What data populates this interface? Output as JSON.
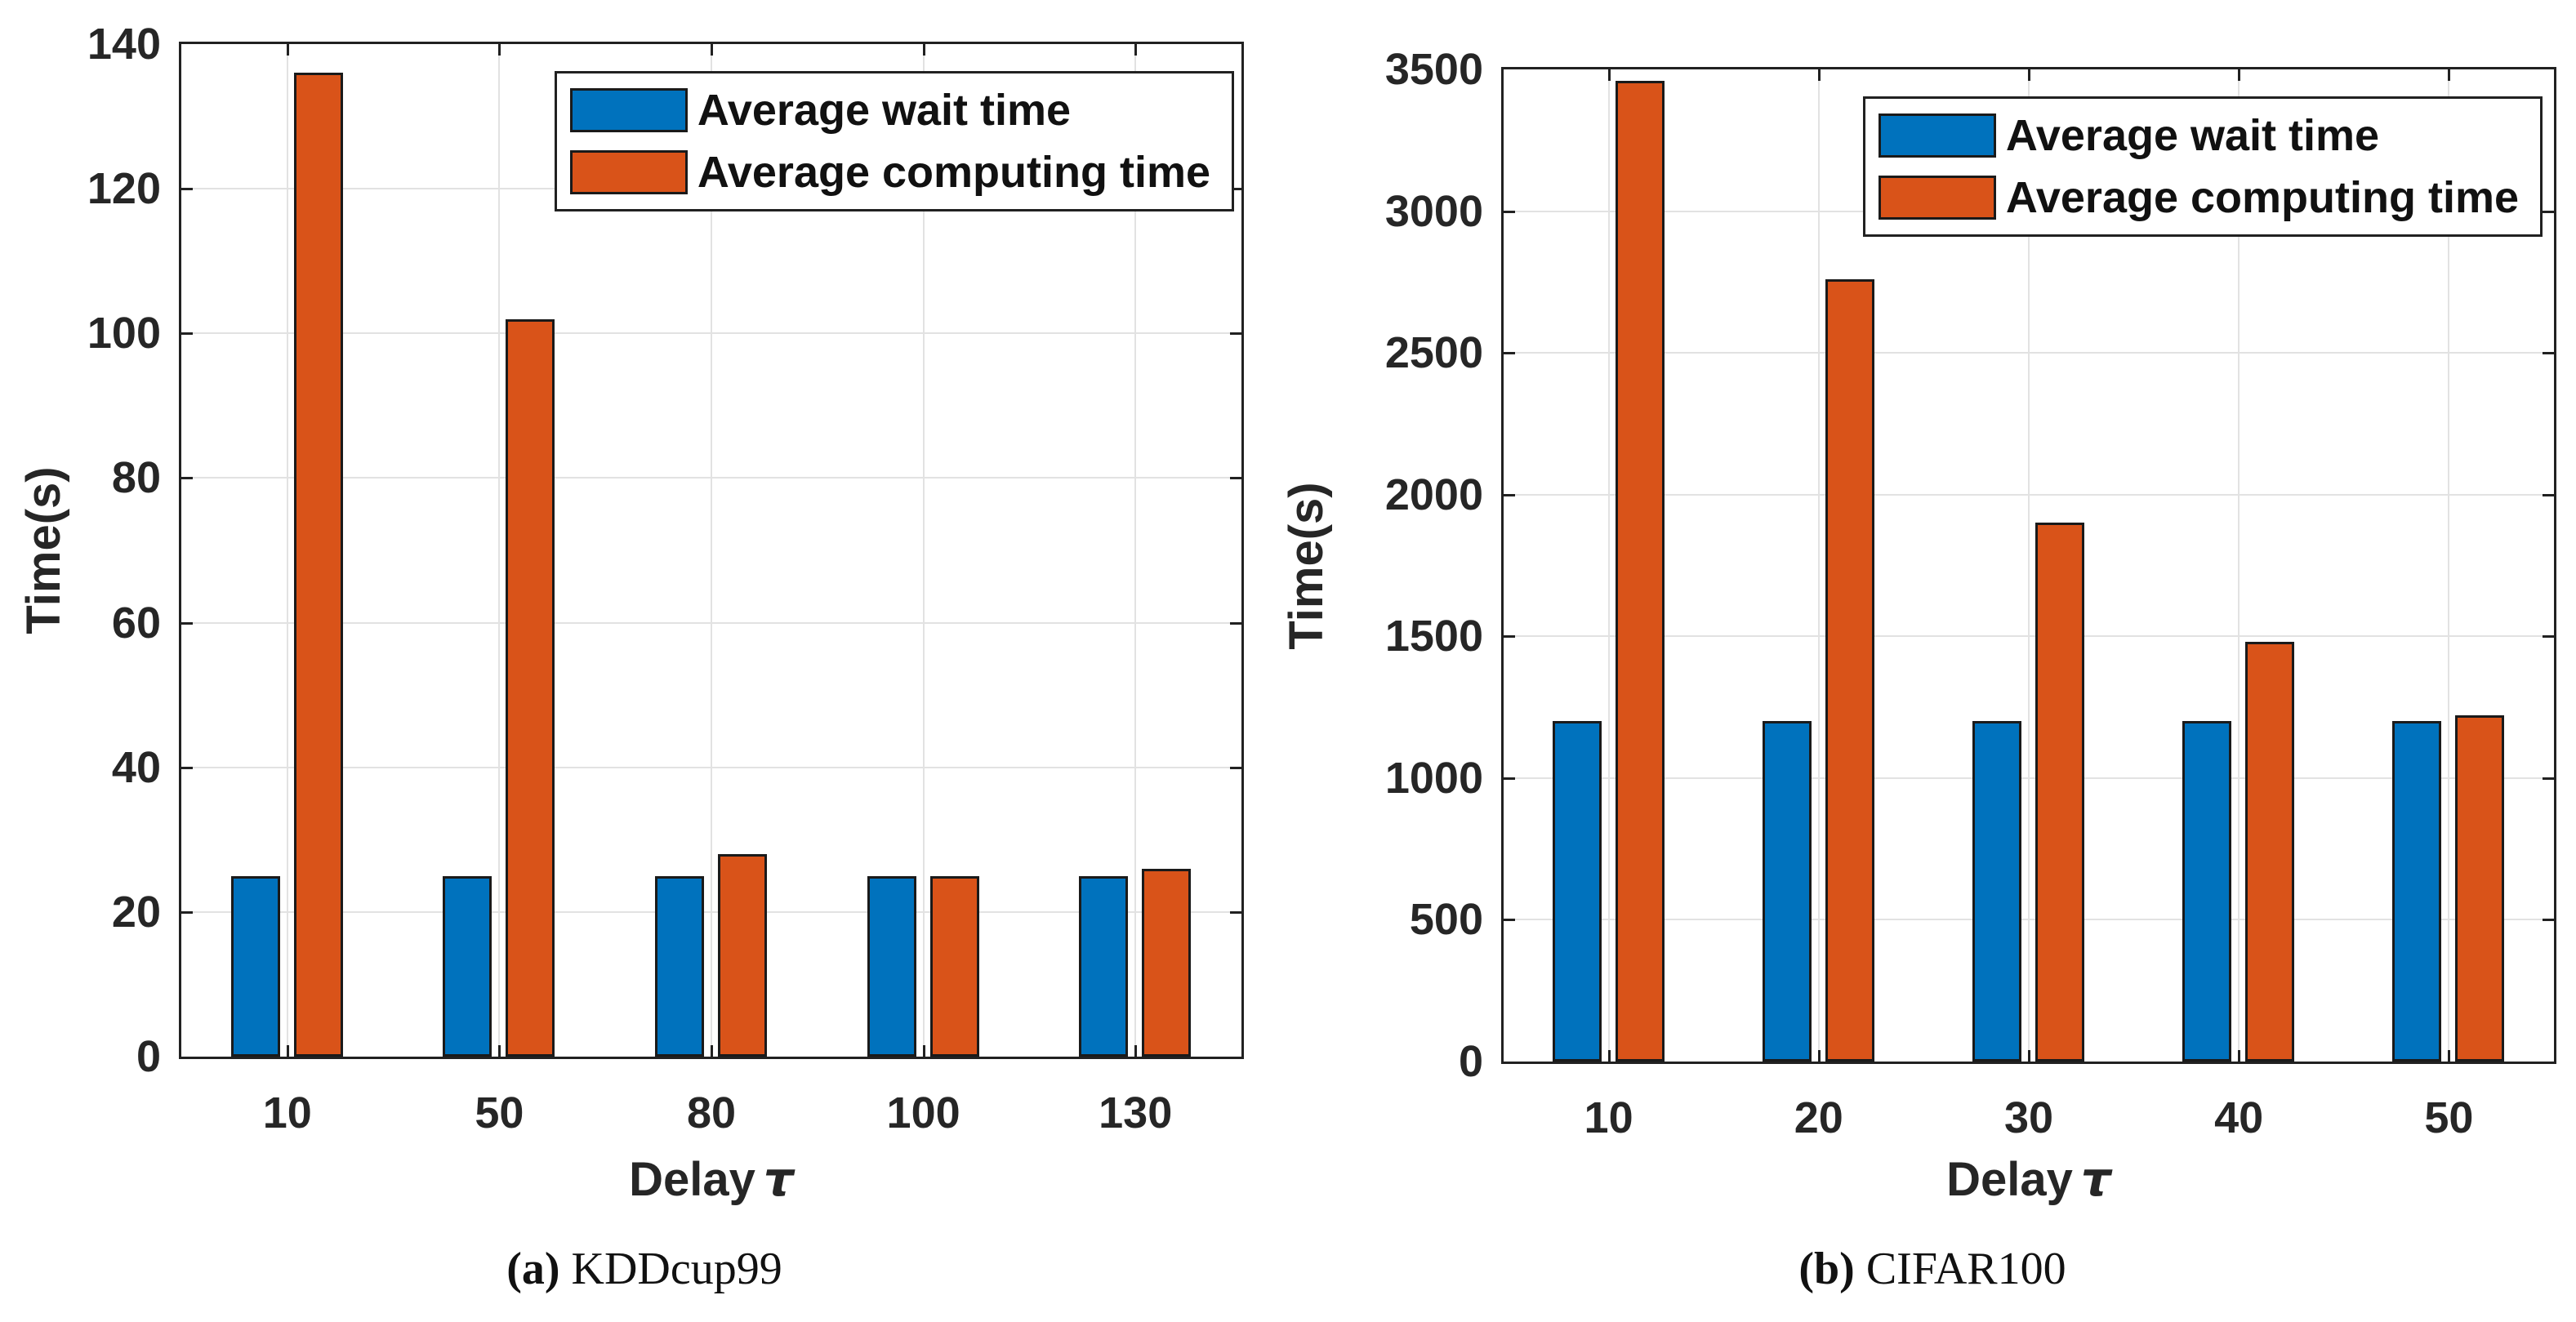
{
  "figure": {
    "background": "#ffffff",
    "colors": {
      "bar_blue": "#0072BD",
      "bar_orange": "#D95319",
      "bar_edge": "#1a1a1a",
      "axis": "#212121",
      "grid": "#e2e2e2",
      "text": "#262626"
    },
    "legend": {
      "items": [
        {
          "label": "Average wait time",
          "color": "#0072BD"
        },
        {
          "label": "Average computing time",
          "color": "#D95319"
        }
      ]
    },
    "charts": [
      {
        "id": "a",
        "ylabel": "Time(s)",
        "xlabel_text": "Delay",
        "xlabel_symbol": "τ",
        "caption_prefix": "(a)",
        "caption_label": "KDDcup99",
        "ytick_labels": [
          "0",
          "20",
          "40",
          "60",
          "80",
          "100",
          "120",
          "140"
        ],
        "xtick_labels": [
          "10",
          "50",
          "80",
          "100",
          "130"
        ]
      },
      {
        "id": "b",
        "ylabel": "Time(s)",
        "xlabel_text": "Delay",
        "xlabel_symbol": "τ",
        "caption_prefix": "(b)",
        "caption_label": "CIFAR100",
        "ytick_labels": [
          "0",
          "500",
          "1000",
          "1500",
          "2000",
          "2500",
          "3000",
          "3500"
        ],
        "xtick_labels": [
          "10",
          "20",
          "30",
          "40",
          "50"
        ]
      }
    ]
  },
  "chart_data": [
    {
      "type": "bar",
      "title": "(a) KDDcup99",
      "categories": [
        10,
        50,
        80,
        100,
        130
      ],
      "series": [
        {
          "name": "Average wait time",
          "values": [
            25,
            25,
            25,
            25,
            25
          ]
        },
        {
          "name": "Average computing time",
          "values": [
            136,
            102,
            28,
            25,
            26
          ]
        }
      ],
      "xlabel": "Delay τ",
      "ylabel": "Time(s)",
      "ylim": [
        0,
        140
      ],
      "yticks": [
        0,
        20,
        40,
        60,
        80,
        100,
        120,
        140
      ],
      "grid": true,
      "legend_position": "top-right"
    },
    {
      "type": "bar",
      "title": "(b) CIFAR100",
      "categories": [
        10,
        20,
        30,
        40,
        50
      ],
      "series": [
        {
          "name": "Average wait time",
          "values": [
            1200,
            1200,
            1200,
            1200,
            1200
          ]
        },
        {
          "name": "Average computing time",
          "values": [
            3460,
            2760,
            1900,
            1480,
            1220
          ]
        }
      ],
      "xlabel": "Delay τ",
      "ylabel": "Time(s)",
      "ylim": [
        0,
        3500
      ],
      "yticks": [
        0,
        500,
        1000,
        1500,
        2000,
        2500,
        3000,
        3500
      ],
      "grid": true,
      "legend_position": "top-right"
    }
  ]
}
